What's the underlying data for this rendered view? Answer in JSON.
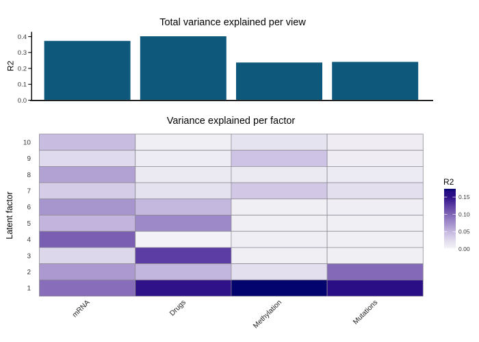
{
  "figure": {
    "background": "#FFFFFF"
  },
  "chart_data": [
    {
      "type": "bar",
      "title": "Total variance explained per view",
      "ylabel": "R2",
      "categories": [
        "mRNA",
        "Drugs",
        "Methylation",
        "Mutations"
      ],
      "values": [
        0.373,
        0.402,
        0.237,
        0.241
      ],
      "ylim": [
        0,
        0.425
      ],
      "yticks": {
        "values": [
          0,
          0.1,
          0.2,
          0.3,
          0.4
        ],
        "labels": [
          "0.0",
          "0.1",
          "0.2",
          "0.3",
          "0.4"
        ]
      },
      "bar_color": "#0E587C",
      "axis_color": "#000000",
      "tick_text_color": "#383838",
      "grid": "off",
      "legend_position": "none"
    },
    {
      "type": "heatmap",
      "title": "Variance explained per factor",
      "ylabel": "Latent factor",
      "columns": [
        "mRNA",
        "Drugs",
        "Methylation",
        "Mutations"
      ],
      "row_labels": [
        "10",
        "9",
        "8",
        "7",
        "6",
        "5",
        "4",
        "3",
        "2",
        "1"
      ],
      "rows": [
        {
          "factor": "10",
          "values": [
            0.047,
            0.005,
            0.018,
            0.007
          ]
        },
        {
          "factor": "9",
          "values": [
            0.026,
            0.009,
            0.042,
            0.007
          ]
        },
        {
          "factor": "8",
          "values": [
            0.062,
            0.012,
            0.012,
            0.011
          ]
        },
        {
          "factor": "7",
          "values": [
            0.035,
            0.019,
            0.038,
            0.021
          ]
        },
        {
          "factor": "6",
          "values": [
            0.07,
            0.05,
            0.005,
            0.006
          ]
        },
        {
          "factor": "5",
          "values": [
            0.052,
            0.078,
            0.005,
            0.005
          ]
        },
        {
          "factor": "4",
          "values": [
            0.105,
            0.004,
            0.006,
            0.005
          ]
        },
        {
          "factor": "3",
          "values": [
            0.028,
            0.125,
            0.005,
            0.005
          ]
        },
        {
          "factor": "2",
          "values": [
            0.067,
            0.051,
            0.021,
            0.098
          ]
        },
        {
          "factor": "1",
          "values": [
            0.095,
            0.15,
            0.175,
            0.16
          ]
        }
      ],
      "colormap": [
        [
          0.0,
          "#FFFFFF"
        ],
        [
          0.005,
          "#F0EFF4"
        ],
        [
          0.015,
          "#E9E6F1"
        ],
        [
          0.025,
          "#E0DBED"
        ],
        [
          0.035,
          "#D5CCE8"
        ],
        [
          0.05,
          "#C5B8DF"
        ],
        [
          0.065,
          "#AD9CD1"
        ],
        [
          0.08,
          "#9C86C7"
        ],
        [
          0.1,
          "#8166B6"
        ],
        [
          0.125,
          "#5B3DA3"
        ],
        [
          0.15,
          "#2F1188"
        ],
        [
          0.165,
          "#270D85"
        ],
        [
          0.175,
          "#04046E"
        ]
      ],
      "cell_border_color": "#8E8B94",
      "tick_text_color": "#383838",
      "legend": {
        "title": "R2",
        "vmax": 0.174,
        "ticks": {
          "values": [
            0.15,
            0.1,
            0.05,
            0.0
          ],
          "labels": [
            "0.15",
            "0.10",
            "0.05",
            "0.00"
          ]
        }
      }
    }
  ]
}
